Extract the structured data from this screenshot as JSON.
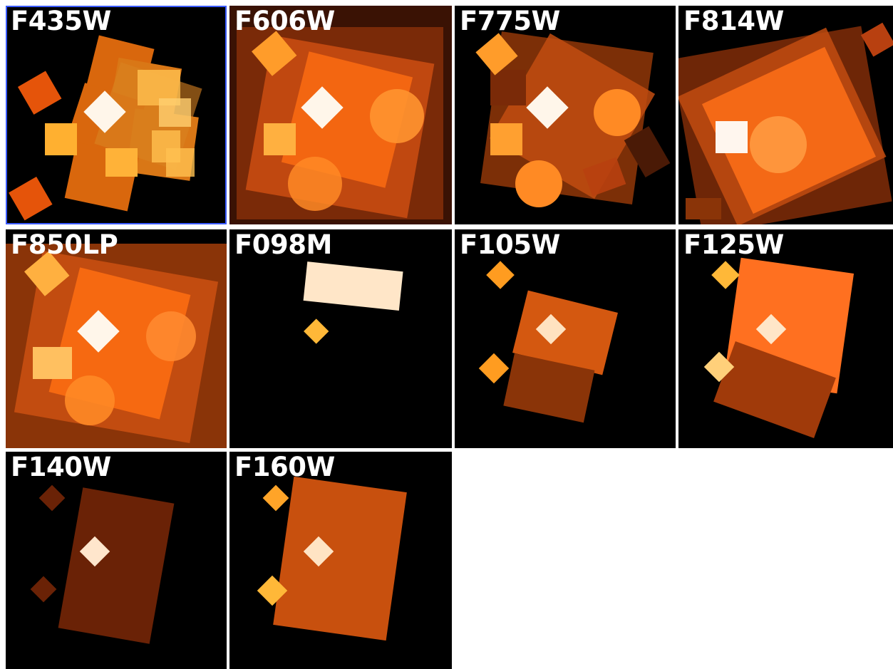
{
  "figure": {
    "background": "#ffffff",
    "panel_background": "#000000",
    "accent_selection": "#3b5bff"
  },
  "panels": [
    {
      "label": "F435W"
    },
    {
      "label": "F606W"
    },
    {
      "label": "F775W"
    },
    {
      "label": "F814W"
    },
    {
      "label": "F850LP"
    },
    {
      "label": "F098M"
    },
    {
      "label": "F105W"
    },
    {
      "label": "F125W"
    },
    {
      "label": "F140W"
    },
    {
      "label": "F160W"
    }
  ]
}
